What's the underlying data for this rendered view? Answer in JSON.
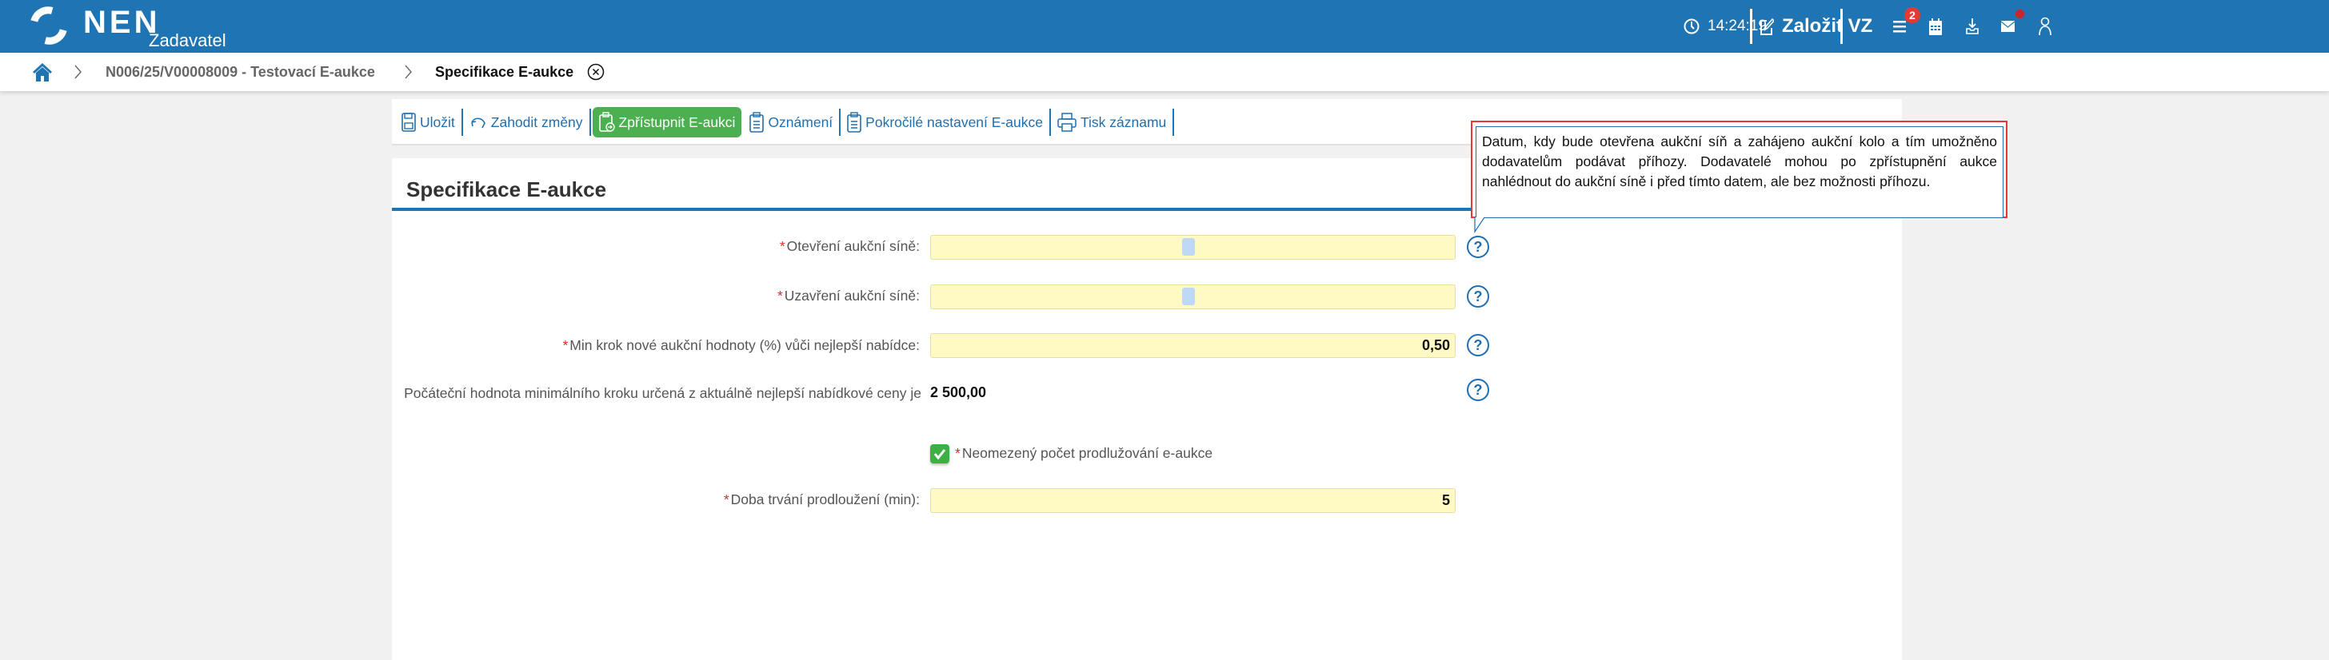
{
  "header": {
    "logo": "NEN",
    "subtitle": "Zadavatel",
    "time": "14:24:19",
    "create_label": "Založit VZ",
    "menu_badge": "2",
    "brand_color": "#1f75b4"
  },
  "breadcrumb": {
    "items": [
      "N006/25/V00008009 - Testovací E-aukce",
      "Specifikace E-aukce"
    ]
  },
  "toolbar": {
    "items": [
      {
        "label": "Uložit",
        "icon": "save-icon"
      },
      {
        "label": "Zahodit změny",
        "icon": "undo-icon"
      },
      {
        "label": "Zpřístupnit E-aukci",
        "icon": "clipboard-arrow-icon",
        "accent": "#4caf50"
      },
      {
        "label": "Oznámení",
        "icon": "clipboard-icon"
      },
      {
        "label": "Pokročilé nastavení E-aukce",
        "icon": "clipboard-icon"
      },
      {
        "label": "Tisk záznamu",
        "icon": "print-icon"
      }
    ]
  },
  "section": {
    "title": "Specifikace E-aukce"
  },
  "form": {
    "open_label": "Otevření aukční síně:",
    "open_value": "",
    "close_label": "Uzavření aukční síně:",
    "close_value": "",
    "minstep_label": "Min krok nové aukční hodnoty (%) vůči nejlepší nabídce:",
    "minstep_value": "0,50",
    "initial_label": "Počáteční hodnota minimálního kroku určená z aktuálně nejlepší nabídkové ceny je",
    "initial_colon": ":",
    "initial_value": "2 500,00",
    "unlimited_label": "Neomezený počet prodlužování e-aukce",
    "unlimited_checked": true,
    "duration_label": "Doba trvání prodloužení (min):",
    "duration_value": "5",
    "required_mark": "*"
  },
  "tooltip": {
    "text": "Datum, kdy bude otevřena aukční síň a zahájeno aukční kolo a tím umožněno dodavatelům podávat příhozy. Dodavatelé mohou po zpřístupnění aukce nahlédnout do aukční síně i před tímto datem, ale bez možnosti příhozu."
  },
  "help_glyph": "?"
}
